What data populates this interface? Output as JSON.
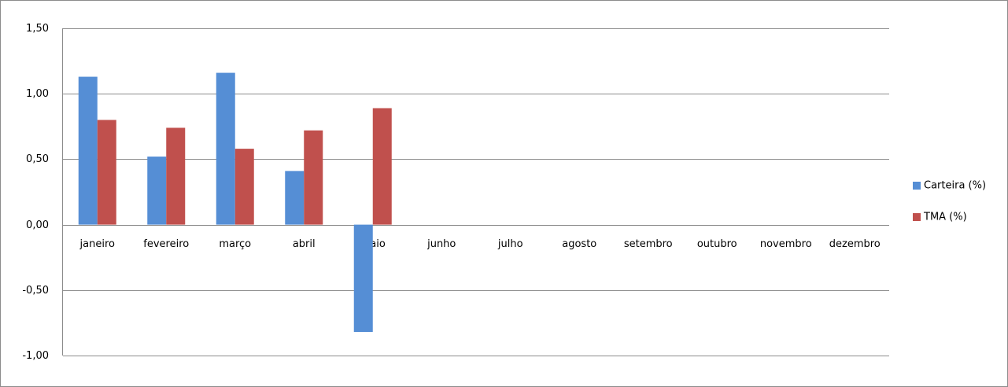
{
  "chart_data": {
    "type": "bar",
    "categories": [
      "janeiro",
      "fevereiro",
      "março",
      "abril",
      "maio",
      "junho",
      "julho",
      "agosto",
      "setembro",
      "outubro",
      "novembro",
      "dezembro"
    ],
    "series": [
      {
        "name": "Carteira (%)",
        "color": "#558ed5",
        "values": [
          1.13,
          0.52,
          1.16,
          0.41,
          -0.82,
          null,
          null,
          null,
          null,
          null,
          null,
          null
        ]
      },
      {
        "name": "TMA (%)",
        "color": "#c0504d",
        "values": [
          0.8,
          0.74,
          0.58,
          0.72,
          0.89,
          null,
          null,
          null,
          null,
          null,
          null,
          null
        ]
      }
    ],
    "ylim": [
      -1,
      1.5
    ],
    "yticks": [
      {
        "value": -1,
        "label": "-1,00"
      },
      {
        "value": -0.5,
        "label": "-0,50"
      },
      {
        "value": 0,
        "label": "0,00"
      },
      {
        "value": 0.5,
        "label": "0,50"
      },
      {
        "value": 1,
        "label": "1,00"
      },
      {
        "value": 1.5,
        "label": "1,50"
      }
    ],
    "grid": true,
    "legend": "right"
  }
}
